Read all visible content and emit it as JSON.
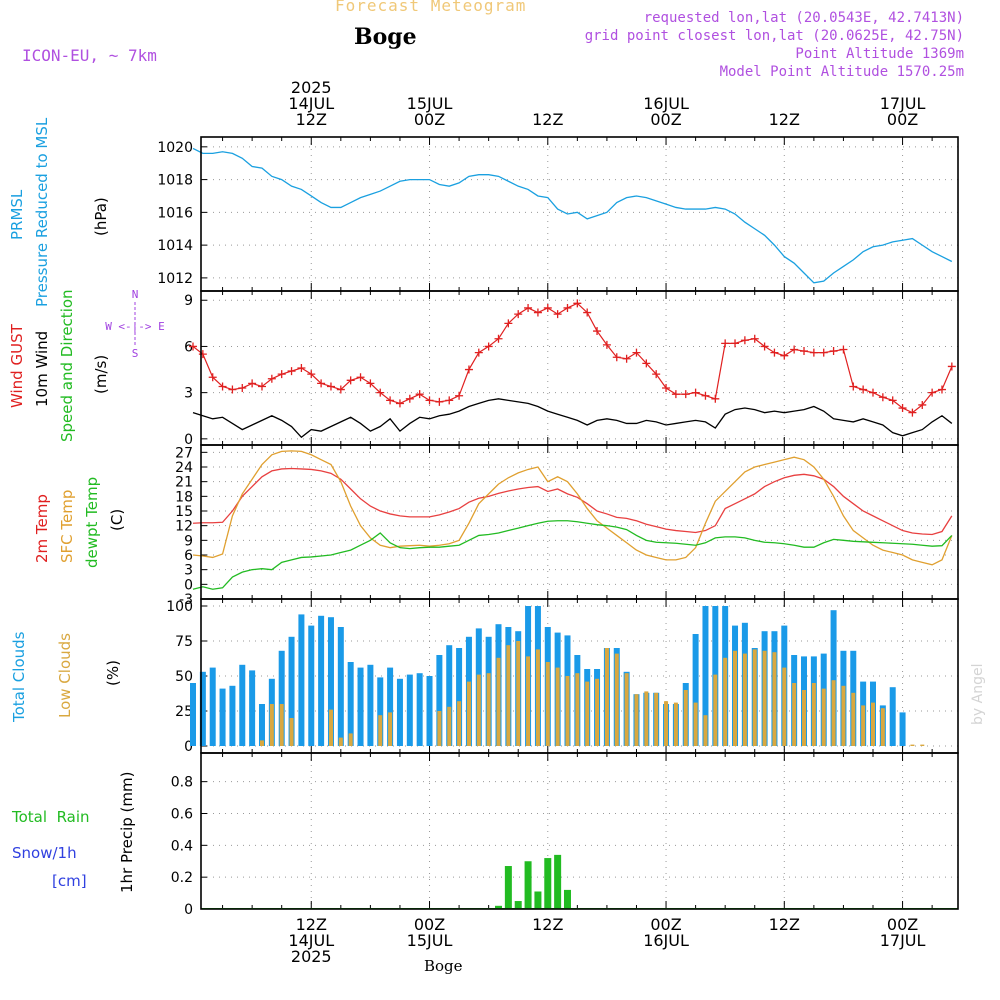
{
  "header": {
    "product_title": "Forecast Meteogram",
    "location": "Boge",
    "model": "ICON-EU, ~ 7km",
    "requested": "requested lon,lat (20.0543E, 42.7413N)",
    "grid_point": "grid point closest lon,lat (20.0625E, 42.75N)",
    "point_alt": "Point Altitude 1369m",
    "model_alt": "Model Point Altitude 1570.25m",
    "footer_location": "Boge",
    "watermark": "by Angel"
  },
  "time_axis": {
    "top": [
      {
        "l1": "2025",
        "l2": "14JUL",
        "l3": "12Z",
        "h": 12
      },
      {
        "l1": "",
        "l2": "15JUL",
        "l3": "00Z",
        "h": 24
      },
      {
        "l1": "",
        "l2": "",
        "l3": "12Z",
        "h": 36
      },
      {
        "l1": "",
        "l2": "16JUL",
        "l3": "00Z",
        "h": 48
      },
      {
        "l1": "",
        "l2": "",
        "l3": "12Z",
        "h": 60
      },
      {
        "l1": "",
        "l2": "17JUL",
        "l3": "00Z",
        "h": 72
      }
    ],
    "bottom": [
      {
        "l1": "12Z",
        "l2": "14JUL",
        "l3": "2025",
        "h": 12
      },
      {
        "l1": "00Z",
        "l2": "15JUL",
        "l3": "",
        "h": 24
      },
      {
        "l1": "12Z",
        "l2": "",
        "l3": "",
        "h": 36
      },
      {
        "l1": "00Z",
        "l2": "16JUL",
        "l3": "",
        "h": 48
      },
      {
        "l1": "12Z",
        "l2": "",
        "l3": "",
        "h": 60
      },
      {
        "l1": "00Z",
        "l2": "17JUL",
        "l3": "",
        "h": 72
      }
    ]
  },
  "panel_labels": {
    "pressure": [
      {
        "text": "PRMSL",
        "color": "#1aa0e0"
      },
      {
        "text": "Pressure Reduced to MSL",
        "color": "#1aa0e0"
      },
      {
        "text": "(hPa)",
        "color": "#000000"
      }
    ],
    "wind": [
      {
        "text": "Wind GUST",
        "color": "#e02020"
      },
      {
        "text": "10m Wind",
        "color": "#000000"
      },
      {
        "text": "Speed and Direction",
        "color": "#22bb22"
      },
      {
        "text": "(m/s)",
        "color": "#000000"
      }
    ],
    "wind_compass": "W <-|-> E",
    "wind_compass_n": "N",
    "wind_compass_s": "S",
    "temp": [
      {
        "text": "2m Temp",
        "color": "#e02020"
      },
      {
        "text": "SFC Temp",
        "color": "#e0a030"
      },
      {
        "text": "dewpt Temp",
        "color": "#22bb22"
      },
      {
        "text": "(C)",
        "color": "#000000"
      }
    ],
    "clouds": [
      {
        "text": "Total Clouds",
        "color": "#1aa0e0"
      },
      {
        "text": "Low Clouds",
        "color": "#d9a840"
      },
      {
        "text": "(%)",
        "color": "#000000"
      }
    ],
    "precip_axis": "1hr Precip (mm)",
    "precip_legend": [
      {
        "text": "Total  Rain",
        "color": "#22bb22"
      },
      {
        "text": "Snow/1h",
        "color": "#3040e0"
      },
      {
        "text": "[cm]",
        "color": "#3040e0"
      }
    ]
  },
  "chart_data": [
    {
      "type": "line",
      "name": "PRMSL",
      "color": "#1aa0e0",
      "ylim": [
        1011.2,
        1020.6
      ],
      "yticks": [
        1012,
        1014,
        1016,
        1018,
        1020
      ],
      "x_hours": [
        0,
        1,
        2,
        3,
        4,
        5,
        6,
        7,
        8,
        9,
        10,
        11,
        12,
        13,
        14,
        15,
        16,
        17,
        18,
        19,
        20,
        21,
        22,
        23,
        24,
        25,
        26,
        27,
        28,
        29,
        30,
        31,
        32,
        33,
        34,
        35,
        36,
        37,
        38,
        39,
        40,
        41,
        42,
        43,
        44,
        45,
        46,
        47,
        48,
        49,
        50,
        51,
        52,
        53,
        54,
        55,
        56,
        57,
        58,
        59,
        60,
        61,
        62,
        63,
        64,
        65,
        66,
        67,
        68,
        69,
        70,
        71,
        72,
        73,
        74,
        75,
        76,
        77
      ],
      "values": [
        1019.9,
        1019.6,
        1019.6,
        1019.7,
        1019.6,
        1019.3,
        1018.8,
        1018.7,
        1018.2,
        1018.0,
        1017.6,
        1017.4,
        1017.0,
        1016.6,
        1016.3,
        1016.3,
        1016.6,
        1016.9,
        1017.1,
        1017.3,
        1017.6,
        1017.9,
        1018.0,
        1018.0,
        1018.0,
        1017.7,
        1017.6,
        1017.8,
        1018.2,
        1018.3,
        1018.3,
        1018.2,
        1017.9,
        1017.6,
        1017.4,
        1017.0,
        1016.9,
        1016.2,
        1015.9,
        1016.0,
        1015.6,
        1015.8,
        1016.0,
        1016.6,
        1016.9,
        1017.0,
        1016.9,
        1016.7,
        1016.5,
        1016.3,
        1016.2,
        1016.2,
        1016.2,
        1016.3,
        1016.2,
        1015.9,
        1015.4,
        1015.0,
        1014.6,
        1014.0,
        1013.3,
        1012.9,
        1012.3,
        1011.7,
        1011.8,
        1012.3,
        1012.7,
        1013.1,
        1013.6,
        1013.9,
        1014.0,
        1014.2,
        1014.3,
        1014.4,
        1014.0,
        1013.6,
        1013.3,
        1013.0
      ]
    },
    {
      "type": "line",
      "name": "Wind",
      "ylim": [
        -0.4,
        9.6
      ],
      "yticks": [
        0,
        3,
        6,
        9
      ],
      "x_hours": [
        0,
        1,
        2,
        3,
        4,
        5,
        6,
        7,
        8,
        9,
        10,
        11,
        12,
        13,
        14,
        15,
        16,
        17,
        18,
        19,
        20,
        21,
        22,
        23,
        24,
        25,
        26,
        27,
        28,
        29,
        30,
        31,
        32,
        33,
        34,
        35,
        36,
        37,
        38,
        39,
        40,
        41,
        42,
        43,
        44,
        45,
        46,
        47,
        48,
        49,
        50,
        51,
        52,
        53,
        54,
        55,
        56,
        57,
        58,
        59,
        60,
        61,
        62,
        63,
        64,
        65,
        66,
        67,
        68,
        69,
        70,
        71,
        72,
        73,
        74,
        75,
        76,
        77
      ],
      "series": [
        {
          "name": "Wind GUST",
          "color": "#e02020",
          "marker": "plus",
          "values": [
            6.0,
            5.5,
            4.0,
            3.4,
            3.2,
            3.3,
            3.6,
            3.4,
            3.9,
            4.2,
            4.4,
            4.6,
            4.2,
            3.6,
            3.4,
            3.2,
            3.8,
            4.0,
            3.6,
            3.0,
            2.5,
            2.3,
            2.6,
            2.9,
            2.5,
            2.4,
            2.5,
            2.8,
            4.5,
            5.6,
            6.0,
            6.5,
            7.5,
            8.1,
            8.5,
            8.2,
            8.5,
            8.1,
            8.5,
            8.8,
            8.2,
            7.0,
            6.1,
            5.3,
            5.2,
            5.6,
            4.9,
            4.2,
            3.3,
            2.9,
            2.9,
            3.0,
            2.8,
            2.6,
            6.2,
            6.2,
            6.4,
            6.5,
            6.0,
            5.6,
            5.4,
            5.8,
            5.7,
            5.6,
            5.6,
            5.7,
            5.8,
            3.4,
            3.2,
            3.0,
            2.7,
            2.5,
            2.0,
            1.7,
            2.2,
            3.0,
            3.2,
            4.7
          ]
        },
        {
          "name": "10m Wind",
          "color": "#000000",
          "marker": "none",
          "values": [
            1.7,
            1.5,
            1.3,
            1.4,
            1.0,
            0.6,
            0.9,
            1.2,
            1.5,
            1.2,
            0.8,
            0.1,
            0.6,
            0.5,
            0.8,
            1.1,
            1.4,
            1.0,
            0.5,
            0.8,
            1.3,
            0.5,
            1.0,
            1.4,
            1.3,
            1.5,
            1.6,
            1.8,
            2.1,
            2.3,
            2.5,
            2.6,
            2.5,
            2.4,
            2.3,
            2.1,
            1.8,
            1.6,
            1.4,
            1.2,
            0.9,
            1.2,
            1.3,
            1.2,
            1.0,
            1.0,
            1.2,
            1.1,
            0.9,
            1.0,
            1.1,
            1.2,
            1.1,
            0.7,
            1.6,
            1.9,
            2.0,
            1.9,
            1.7,
            1.8,
            1.7,
            1.8,
            1.9,
            2.1,
            1.8,
            1.3,
            1.2,
            1.1,
            1.3,
            1.1,
            0.9,
            0.4,
            0.2,
            0.4,
            0.6,
            1.1,
            1.5,
            1.0
          ]
        }
      ]
    },
    {
      "type": "line",
      "name": "Temperature",
      "ylim": [
        -3,
        28.5
      ],
      "yticks": [
        -3,
        0,
        3,
        6,
        9,
        12,
        15,
        18,
        21,
        24,
        27
      ],
      "x_hours": [
        0,
        1,
        2,
        3,
        4,
        5,
        6,
        7,
        8,
        9,
        10,
        11,
        12,
        13,
        14,
        15,
        16,
        17,
        18,
        19,
        20,
        21,
        22,
        23,
        24,
        25,
        26,
        27,
        28,
        29,
        30,
        31,
        32,
        33,
        34,
        35,
        36,
        37,
        38,
        39,
        40,
        41,
        42,
        43,
        44,
        45,
        46,
        47,
        48,
        49,
        50,
        51,
        52,
        53,
        54,
        55,
        56,
        57,
        58,
        59,
        60,
        61,
        62,
        63,
        64,
        65,
        66,
        67,
        68,
        69,
        70,
        71,
        72,
        73,
        74,
        75,
        76,
        77
      ],
      "series": [
        {
          "name": "2m Temp",
          "color": "#e84040",
          "values": [
            12.5,
            12.6,
            12.6,
            12.7,
            15.0,
            18.0,
            20.0,
            22.0,
            23.2,
            23.6,
            23.7,
            23.6,
            23.5,
            23.2,
            22.7,
            21.5,
            19.5,
            17.5,
            16.0,
            15.0,
            14.4,
            14.0,
            13.8,
            13.8,
            13.8,
            14.2,
            14.8,
            15.5,
            16.8,
            17.6,
            18.0,
            18.6,
            19.1,
            19.5,
            19.8,
            20.0,
            19.0,
            19.5,
            18.5,
            17.8,
            16.5,
            15.0,
            14.4,
            13.7,
            13.5,
            13.0,
            12.3,
            11.8,
            11.3,
            11.0,
            10.8,
            10.6,
            11.0,
            12.0,
            15.5,
            16.5,
            17.5,
            18.5,
            20.0,
            21.0,
            21.8,
            22.3,
            22.5,
            22.2,
            21.5,
            20.0,
            18.0,
            16.5,
            15.0,
            14.0,
            13.0,
            12.0,
            11.0,
            10.5,
            10.3,
            10.2,
            10.8,
            14.0
          ]
        },
        {
          "name": "SFC Temp",
          "color": "#e0a030",
          "values": [
            6.0,
            5.8,
            5.5,
            6.2,
            14.0,
            18.5,
            21.5,
            24.5,
            26.5,
            27.2,
            27.3,
            27.2,
            26.5,
            25.5,
            24.5,
            21.0,
            16.0,
            12.0,
            9.5,
            8.0,
            7.5,
            7.8,
            7.9,
            8.0,
            7.8,
            8.0,
            8.3,
            9.0,
            12.5,
            16.5,
            18.5,
            20.5,
            21.8,
            22.8,
            23.5,
            24.0,
            21.0,
            22.0,
            21.0,
            18.5,
            15.5,
            13.0,
            11.5,
            10.0,
            8.5,
            7.0,
            6.0,
            5.5,
            5.0,
            5.0,
            5.5,
            7.5,
            12.5,
            17.0,
            19.0,
            21.0,
            23.0,
            24.0,
            24.5,
            25.0,
            25.5,
            26.0,
            25.5,
            24.0,
            21.5,
            18.0,
            14.0,
            11.0,
            9.5,
            8.0,
            7.0,
            6.5,
            6.0,
            5.0,
            4.5,
            4.0,
            5.0,
            10.0
          ]
        },
        {
          "name": "dewpt Temp",
          "color": "#22bb22",
          "values": [
            -1.0,
            -0.5,
            -1.0,
            -0.7,
            1.5,
            2.5,
            3.0,
            3.2,
            3.0,
            4.5,
            5.0,
            5.5,
            5.6,
            5.8,
            6.0,
            6.5,
            7.0,
            8.0,
            9.0,
            10.5,
            8.5,
            7.5,
            7.3,
            7.5,
            7.6,
            7.6,
            7.8,
            8.0,
            9.0,
            10.0,
            10.2,
            10.5,
            11.0,
            11.5,
            12.0,
            12.5,
            12.9,
            13.0,
            13.0,
            12.8,
            12.5,
            12.2,
            12.0,
            11.7,
            11.2,
            10.0,
            9.0,
            8.6,
            8.5,
            8.4,
            8.2,
            8.0,
            8.5,
            9.5,
            9.7,
            9.7,
            9.5,
            9.0,
            8.6,
            8.5,
            8.3,
            8.0,
            7.6,
            7.6,
            8.5,
            9.2,
            9.0,
            8.8,
            8.7,
            8.6,
            8.5,
            8.4,
            8.3,
            8.2,
            8.0,
            7.8,
            7.9,
            10.0
          ]
        }
      ]
    },
    {
      "type": "bar",
      "name": "Clouds",
      "ylim": [
        -5,
        105
      ],
      "yticks": [
        0,
        25,
        50,
        75,
        100
      ],
      "x_hours": [
        0,
        1,
        2,
        3,
        4,
        5,
        6,
        7,
        8,
        9,
        10,
        11,
        12,
        13,
        14,
        15,
        16,
        17,
        18,
        19,
        20,
        21,
        22,
        23,
        24,
        25,
        26,
        27,
        28,
        29,
        30,
        31,
        32,
        33,
        34,
        35,
        36,
        37,
        38,
        39,
        40,
        41,
        42,
        43,
        44,
        45,
        46,
        47,
        48,
        49,
        50,
        51,
        52,
        53,
        54,
        55,
        56,
        57,
        58,
        59,
        60,
        61,
        62,
        63,
        64,
        65,
        66,
        67,
        68,
        69,
        70,
        71,
        72,
        73,
        74,
        75,
        76,
        77
      ],
      "series": [
        {
          "name": "Total Clouds",
          "color": "#1a9ae8",
          "values": [
            45,
            53,
            56,
            41,
            43,
            58,
            54,
            30,
            48,
            68,
            78,
            94,
            86,
            93,
            92,
            85,
            60,
            56,
            58,
            49,
            56,
            48,
            51,
            52,
            50,
            65,
            72,
            70,
            78,
            84,
            78,
            87,
            85,
            82,
            100,
            100,
            85,
            81,
            79,
            65,
            55,
            55,
            70,
            70,
            53,
            37,
            38,
            38,
            30,
            30,
            45,
            80,
            100,
            100,
            100,
            86,
            88,
            70,
            82,
            82,
            86,
            65,
            64,
            64,
            66,
            97,
            68,
            68,
            46,
            46,
            29,
            42,
            24,
            0,
            0,
            0,
            0,
            0
          ]
        },
        {
          "name": "Low Clouds",
          "color": "#d9a840",
          "values": [
            0,
            0,
            0,
            0,
            0,
            0,
            0,
            4,
            30,
            30,
            20,
            0,
            0,
            0,
            26,
            6,
            9,
            0,
            0,
            22,
            24,
            0,
            0,
            0,
            0,
            25,
            28,
            32,
            46,
            51,
            52,
            63,
            72,
            75,
            64,
            69,
            60,
            56,
            50,
            52,
            46,
            48,
            70,
            66,
            52,
            37,
            39,
            38,
            32,
            31,
            40,
            31,
            22,
            51,
            63,
            68,
            66,
            69,
            68,
            67,
            56,
            45,
            40,
            45,
            41,
            47,
            43,
            38,
            29,
            31,
            27,
            0,
            0,
            1,
            1,
            0,
            0,
            0
          ]
        }
      ]
    },
    {
      "type": "bar",
      "name": "1hr Precip",
      "ylim": [
        0,
        0.98
      ],
      "yticks": [
        0,
        0.2,
        0.4,
        0.6,
        0.8
      ],
      "x_hours": [
        31,
        32,
        33,
        34,
        35,
        36,
        37,
        38,
        39
      ],
      "series": [
        {
          "name": "Total Rain",
          "color": "#22bb22",
          "values": [
            0.02,
            0.27,
            0.05,
            0.3,
            0.11,
            0.32,
            0.34,
            0.12,
            0.0
          ]
        }
      ]
    }
  ]
}
